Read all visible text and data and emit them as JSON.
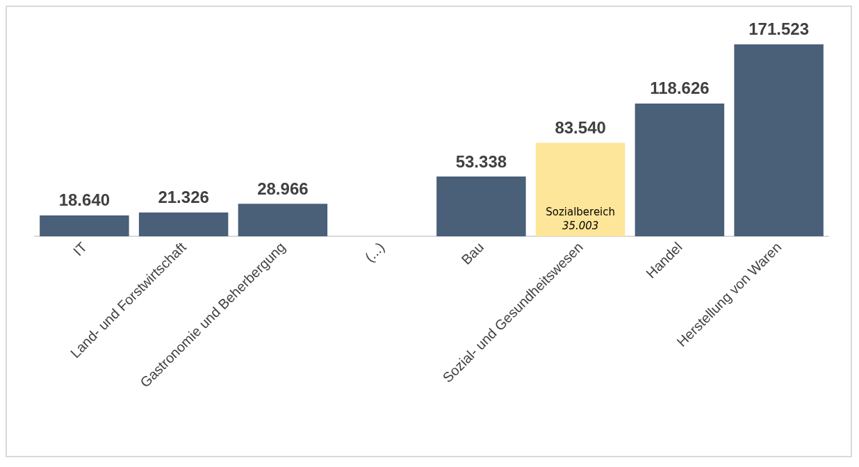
{
  "chart_data": {
    "type": "bar",
    "categories": [
      "IT",
      "Land- und Forstwirtschaft",
      "Gastronomie und Beherbergung",
      "(...)",
      "Bau",
      "Sozial- und Gesundheitswesen",
      "Handel",
      "Herstellung von Waren"
    ],
    "values": [
      18640,
      21326,
      28966,
      null,
      53338,
      83540,
      118626,
      171523
    ],
    "value_labels": [
      "18.640",
      "21.326",
      "28.966",
      null,
      "53.338",
      "83.540",
      "118.626",
      "171.523"
    ],
    "colors": [
      "#4a5f78",
      "#4a5f78",
      "#4a5f78",
      "#4a5f78",
      "#4a5f78",
      "#fde599",
      "#4a5f78",
      "#4a5f78"
    ],
    "annotations": [
      "Sozialbereich",
      "35.003"
    ]
  }
}
